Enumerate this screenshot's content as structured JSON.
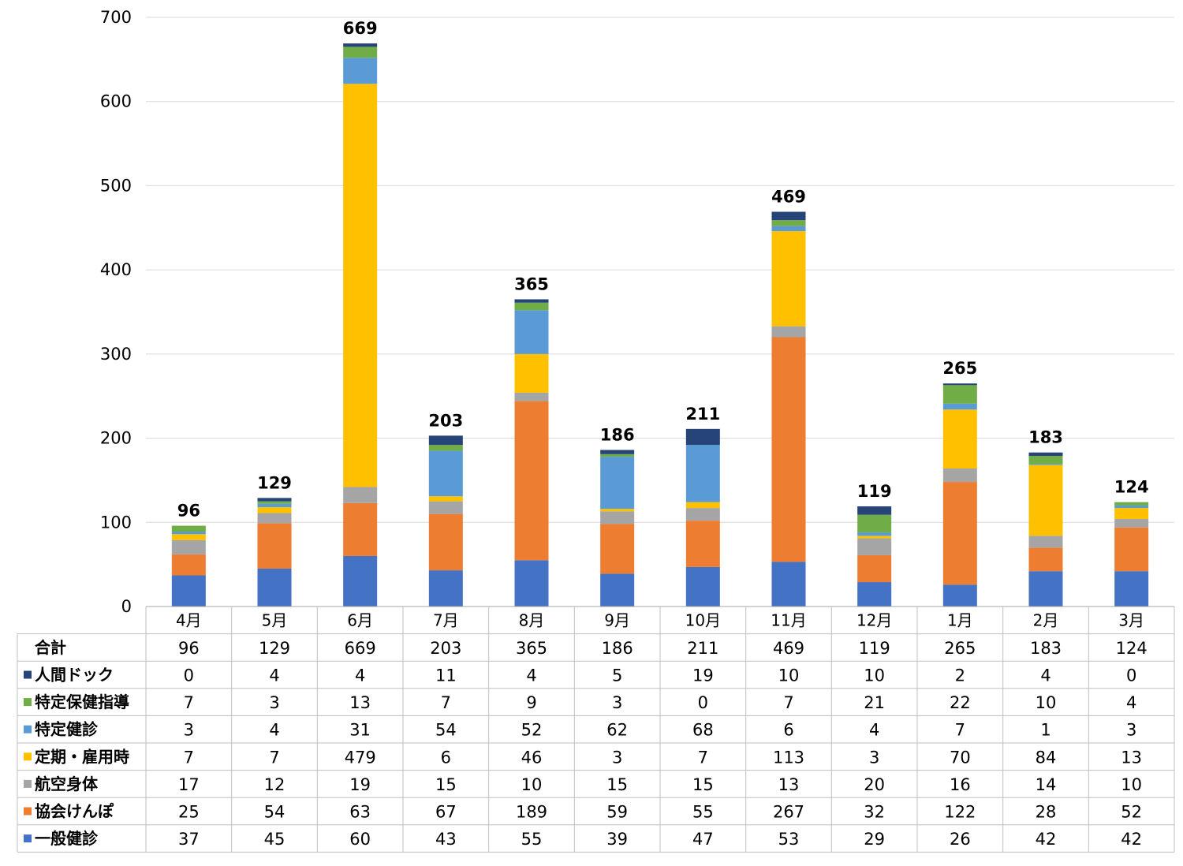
{
  "chart_data": {
    "type": "bar",
    "stacked": true,
    "categories": [
      "4月",
      "5月",
      "6月",
      "7月",
      "8月",
      "9月",
      "10月",
      "11月",
      "12月",
      "1月",
      "2月",
      "3月"
    ],
    "ylim": [
      0,
      700
    ],
    "yticks": [
      0,
      100,
      200,
      300,
      400,
      500,
      600,
      700
    ],
    "grid": true,
    "total_label": "合計",
    "totals": [
      96,
      129,
      669,
      203,
      365,
      186,
      211,
      469,
      119,
      265,
      183,
      124
    ],
    "series": [
      {
        "name": "一般健診",
        "color": "#4472C4",
        "values": [
          37,
          45,
          60,
          43,
          55,
          39,
          47,
          53,
          29,
          26,
          42,
          42
        ]
      },
      {
        "name": "協会けんぽ",
        "color": "#ED7D31",
        "values": [
          25,
          54,
          63,
          67,
          189,
          59,
          55,
          267,
          32,
          122,
          28,
          52
        ]
      },
      {
        "name": "航空身体",
        "color": "#A5A5A5",
        "values": [
          17,
          12,
          19,
          15,
          10,
          15,
          15,
          13,
          20,
          16,
          14,
          10
        ]
      },
      {
        "name": "定期・雇用時",
        "color": "#FFC000",
        "values": [
          7,
          7,
          479,
          6,
          46,
          3,
          7,
          113,
          3,
          70,
          84,
          13
        ]
      },
      {
        "name": "特定健診",
        "color": "#5B9BD5",
        "values": [
          3,
          4,
          31,
          54,
          52,
          62,
          68,
          6,
          4,
          7,
          1,
          3
        ]
      },
      {
        "name": "特定保健指導",
        "color": "#70AD47",
        "values": [
          7,
          3,
          13,
          7,
          9,
          3,
          0,
          7,
          21,
          22,
          10,
          4
        ]
      },
      {
        "name": "人間ドック",
        "color": "#264478",
        "values": [
          0,
          4,
          4,
          11,
          4,
          5,
          19,
          10,
          10,
          2,
          4,
          0
        ]
      }
    ]
  }
}
